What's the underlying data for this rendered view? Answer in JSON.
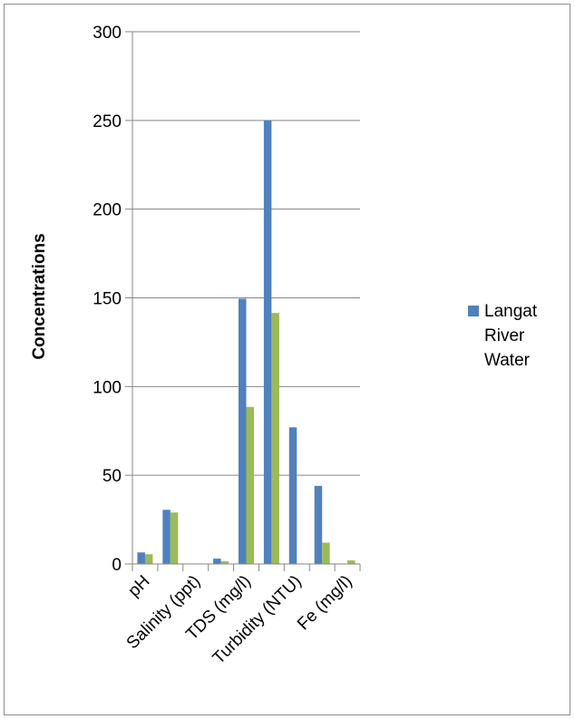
{
  "chart_data": {
    "type": "bar",
    "title": "",
    "xlabel": "",
    "ylabel": "Concentrations",
    "ylim": [
      0,
      300
    ],
    "y_ticks": [
      0,
      50,
      100,
      150,
      200,
      250,
      300
    ],
    "grid": true,
    "legend_position": "right",
    "categories": [
      "pH",
      "",
      "Salinity (ppt)",
      "",
      "TDS (mg/l)",
      "",
      "Turbidity (NTU)",
      "",
      "Fe (mg/l)"
    ],
    "category_labels": [
      "pH",
      "Salinity (ppt)",
      "TDS (mg/l)",
      "Turbidity (NTU)",
      "Fe (mg/l)"
    ],
    "series": [
      {
        "name": "Langat River Water",
        "color": "#4f81bd",
        "values": [
          6.5,
          30.5,
          0,
          3,
          149.5,
          250,
          77,
          44,
          0
        ]
      },
      {
        "color": "#9bbb59",
        "values": [
          5.5,
          29,
          0,
          1.5,
          88.5,
          141.5,
          0,
          12,
          2
        ]
      }
    ]
  }
}
